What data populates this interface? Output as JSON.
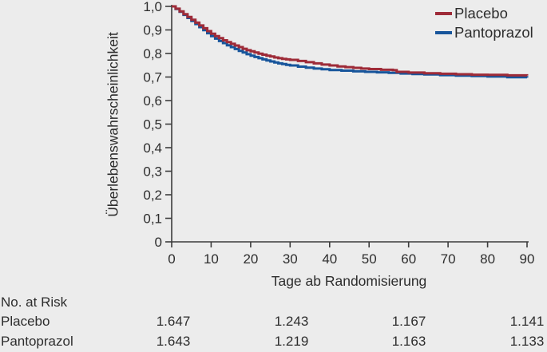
{
  "chart_data": {
    "type": "line",
    "subtype": "kaplan-meier-step",
    "title": "",
    "xlabel": "Tage ab Randomisierung",
    "ylabel": "Überlebenswahrscheinlichkeit",
    "xlim": [
      0,
      90
    ],
    "ylim": [
      0,
      1
    ],
    "grid": false,
    "legend_position": "top-right",
    "x_ticks": [
      0,
      10,
      20,
      30,
      40,
      50,
      60,
      70,
      80,
      90
    ],
    "y_ticks": [
      0,
      0.1,
      0.2,
      0.3,
      0.4,
      0.5,
      0.6,
      0.7,
      0.8,
      0.9,
      1.0
    ],
    "y_tick_labels": [
      "0",
      "0,1",
      "0,2",
      "0,3",
      "0,4",
      "0,5",
      "0,6",
      "0,7",
      "0,8",
      "0,9",
      "1,0"
    ],
    "axis_color": "#3d3d3d",
    "series": [
      {
        "name": "Placebo",
        "color": "#9e2b38",
        "points": [
          [
            0,
            1.0
          ],
          [
            1,
            0.99
          ],
          [
            2,
            0.979
          ],
          [
            3,
            0.967
          ],
          [
            4,
            0.955
          ],
          [
            5,
            0.943
          ],
          [
            6,
            0.931
          ],
          [
            7,
            0.919
          ],
          [
            8,
            0.907
          ],
          [
            9,
            0.895
          ],
          [
            10,
            0.884
          ],
          [
            11,
            0.874
          ],
          [
            12,
            0.865
          ],
          [
            13,
            0.856
          ],
          [
            14,
            0.848
          ],
          [
            15,
            0.841
          ],
          [
            16,
            0.834
          ],
          [
            17,
            0.827
          ],
          [
            18,
            0.82
          ],
          [
            19,
            0.814
          ],
          [
            20,
            0.809
          ],
          [
            21,
            0.804
          ],
          [
            22,
            0.799
          ],
          [
            23,
            0.795
          ],
          [
            24,
            0.791
          ],
          [
            25,
            0.787
          ],
          [
            26,
            0.783
          ],
          [
            27,
            0.78
          ],
          [
            28,
            0.777
          ],
          [
            29,
            0.775
          ],
          [
            30,
            0.773
          ],
          [
            32,
            0.768
          ],
          [
            34,
            0.763
          ],
          [
            36,
            0.758
          ],
          [
            38,
            0.753
          ],
          [
            40,
            0.749
          ],
          [
            42,
            0.745
          ],
          [
            44,
            0.742
          ],
          [
            46,
            0.739
          ],
          [
            48,
            0.736
          ],
          [
            50,
            0.734
          ],
          [
            53,
            0.731
          ],
          [
            56,
            0.729
          ],
          [
            57,
            0.722
          ],
          [
            60,
            0.719
          ],
          [
            64,
            0.716
          ],
          [
            68,
            0.714
          ],
          [
            72,
            0.712
          ],
          [
            76,
            0.71
          ],
          [
            80,
            0.709
          ],
          [
            85,
            0.707
          ],
          [
            90,
            0.706
          ]
        ]
      },
      {
        "name": "Pantoprazol",
        "color": "#17559b",
        "points": [
          [
            0,
            1.0
          ],
          [
            1,
            0.989
          ],
          [
            2,
            0.977
          ],
          [
            3,
            0.964
          ],
          [
            4,
            0.951
          ],
          [
            5,
            0.938
          ],
          [
            6,
            0.925
          ],
          [
            7,
            0.912
          ],
          [
            8,
            0.899
          ],
          [
            9,
            0.886
          ],
          [
            10,
            0.874
          ],
          [
            11,
            0.863
          ],
          [
            12,
            0.853
          ],
          [
            13,
            0.844
          ],
          [
            14,
            0.835
          ],
          [
            15,
            0.827
          ],
          [
            16,
            0.819
          ],
          [
            17,
            0.811
          ],
          [
            18,
            0.804
          ],
          [
            19,
            0.797
          ],
          [
            20,
            0.791
          ],
          [
            21,
            0.785
          ],
          [
            22,
            0.78
          ],
          [
            23,
            0.775
          ],
          [
            24,
            0.77
          ],
          [
            25,
            0.766
          ],
          [
            26,
            0.762
          ],
          [
            27,
            0.758
          ],
          [
            28,
            0.755
          ],
          [
            29,
            0.752
          ],
          [
            30,
            0.749
          ],
          [
            32,
            0.744
          ],
          [
            34,
            0.74
          ],
          [
            36,
            0.736
          ],
          [
            38,
            0.733
          ],
          [
            40,
            0.73
          ],
          [
            43,
            0.727
          ],
          [
            46,
            0.724
          ],
          [
            49,
            0.722
          ],
          [
            52,
            0.72
          ],
          [
            55,
            0.718
          ],
          [
            58,
            0.715
          ],
          [
            61,
            0.713
          ],
          [
            64,
            0.711
          ],
          [
            68,
            0.708
          ],
          [
            72,
            0.706
          ],
          [
            76,
            0.704
          ],
          [
            80,
            0.702
          ],
          [
            85,
            0.699
          ],
          [
            90,
            0.697
          ]
        ]
      }
    ]
  },
  "legend": {
    "items": [
      {
        "label": "Placebo",
        "color": "#9e2b38"
      },
      {
        "label": "Pantoprazol",
        "color": "#17559b"
      }
    ]
  },
  "risk_table": {
    "title": "No. at Risk",
    "time_points": [
      0,
      30,
      60,
      90
    ],
    "rows": [
      {
        "label": "Placebo",
        "values": [
          "1.647",
          "1.243",
          "1.167",
          "1.141"
        ]
      },
      {
        "label": "Pantoprazol",
        "values": [
          "1.643",
          "1.219",
          "1.163",
          "1.133"
        ]
      }
    ]
  }
}
